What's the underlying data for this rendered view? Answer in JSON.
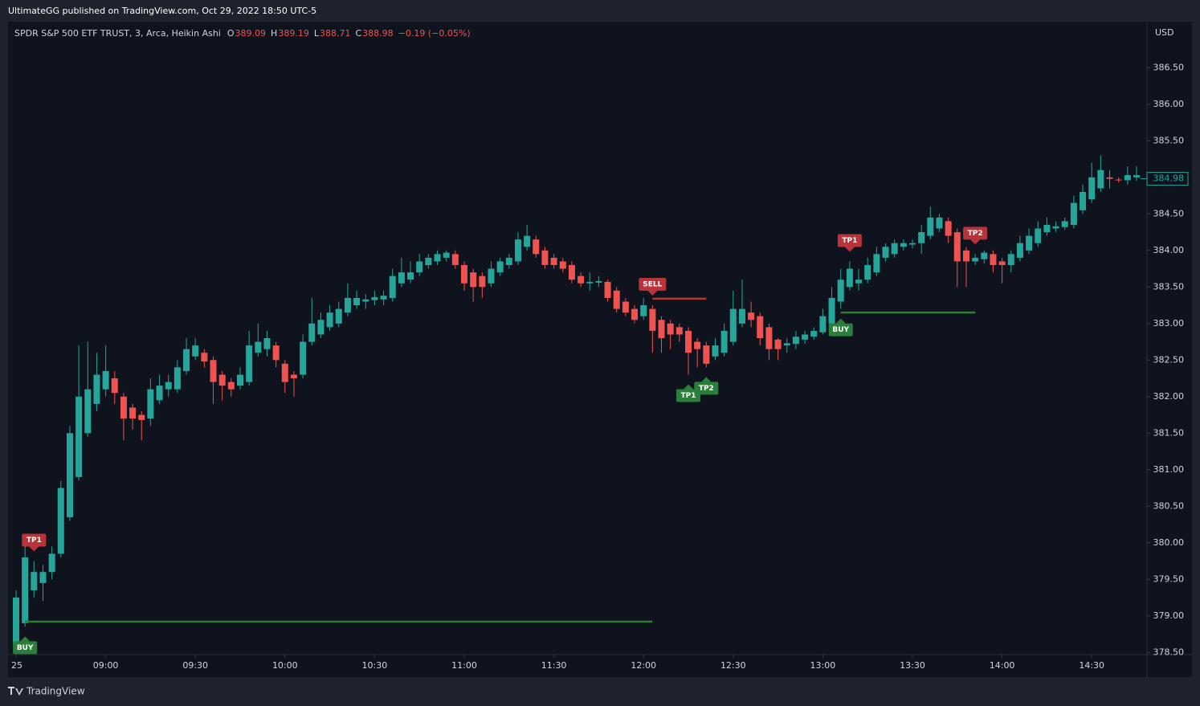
{
  "header": {
    "published": "UltimateGG published on TradingView.com, Oct 29, 2022 18:50 UTC-5",
    "footer": "TradingView"
  },
  "chart_data": {
    "type": "candlestick",
    "symbol": "SPDR S&P 500 ETF TRUST, 3, Arca, Heikin Ashi",
    "ohlc_legend": [
      {
        "key": "O",
        "value": "389.09"
      },
      {
        "key": "H",
        "value": "389.19"
      },
      {
        "key": "L",
        "value": "388.71"
      },
      {
        "key": "C",
        "value": "388.98"
      }
    ],
    "change": "−0.19 (−0.05%)",
    "currency": "USD",
    "up_color": "#26a69a",
    "down_color": "#ef5350",
    "categories": [
      "25",
      null,
      null,
      null,
      null,
      null,
      null,
      null,
      null,
      null,
      "09:00",
      null,
      null,
      null,
      null,
      null,
      null,
      null,
      null,
      null,
      "09:30",
      null,
      null,
      null,
      null,
      null,
      null,
      null,
      null,
      null,
      "10:00",
      null,
      null,
      null,
      null,
      null,
      null,
      null,
      null,
      null,
      "10:30",
      null,
      null,
      null,
      null,
      null,
      null,
      null,
      null,
      null,
      "11:00",
      null,
      null,
      null,
      null,
      null,
      null,
      null,
      null,
      null,
      "11:30",
      null,
      null,
      null,
      null,
      null,
      null,
      null,
      null,
      null,
      "12:00",
      null,
      null,
      null,
      null,
      null,
      null,
      null,
      null,
      null,
      "12:30",
      null,
      null,
      null,
      null,
      null,
      null,
      null,
      null,
      null,
      "13:00",
      null,
      null,
      null,
      null,
      null,
      null,
      null,
      null,
      null,
      "13:30",
      null,
      null,
      null,
      null,
      null,
      null,
      null,
      null,
      null,
      "14:00",
      null,
      null,
      null,
      null,
      null,
      null,
      null,
      null,
      null,
      "14:30",
      null,
      null,
      null,
      null,
      null
    ],
    "open": [
      378.6,
      378.9,
      379.35,
      379.45,
      379.6,
      379.85,
      380.35,
      380.9,
      381.5,
      381.9,
      382.1,
      382.25,
      382.0,
      381.85,
      381.75,
      381.7,
      381.95,
      382.1,
      382.1,
      382.35,
      382.55,
      382.6,
      382.5,
      382.3,
      382.2,
      382.15,
      382.2,
      382.6,
      382.65,
      382.7,
      382.45,
      382.3,
      382.3,
      382.75,
      382.85,
      382.95,
      383.0,
      383.15,
      383.25,
      383.3,
      383.32,
      383.33,
      383.35,
      383.55,
      383.6,
      383.7,
      383.8,
      383.85,
      383.9,
      383.95,
      383.8,
      383.7,
      383.65,
      383.55,
      383.7,
      383.8,
      383.85,
      384.05,
      384.15,
      384.0,
      383.9,
      383.85,
      383.8,
      383.65,
      383.55,
      383.56,
      383.57,
      383.45,
      383.3,
      383.2,
      383.1,
      383.2,
      383.05,
      383.0,
      382.95,
      382.9,
      382.75,
      382.7,
      382.55,
      382.6,
      382.75,
      383.0,
      383.15,
      383.1,
      382.95,
      382.78,
      382.7,
      382.72,
      382.78,
      382.82,
      382.88,
      383.0,
      383.3,
      383.5,
      383.55,
      383.6,
      383.7,
      383.9,
      383.95,
      384.05,
      384.08,
      384.1,
      384.2,
      384.3,
      384.4,
      384.25,
      384.0,
      383.85,
      383.88,
      383.95,
      383.85,
      383.8,
      383.9,
      384.0,
      384.1,
      384.25,
      384.3,
      384.32,
      384.35,
      384.55,
      384.7,
      384.85,
      385.0,
      384.97,
      384.96,
      385.0
    ],
    "high": [
      379.35,
      379.95,
      379.75,
      379.7,
      379.95,
      380.85,
      381.6,
      382.7,
      382.75,
      382.6,
      382.7,
      382.35,
      382.05,
      381.9,
      381.8,
      382.25,
      382.3,
      382.3,
      382.5,
      382.8,
      382.8,
      382.65,
      382.55,
      382.35,
      382.25,
      382.4,
      382.9,
      383.0,
      382.9,
      382.75,
      382.5,
      382.35,
      382.85,
      383.35,
      383.15,
      383.25,
      383.3,
      383.55,
      383.45,
      383.4,
      383.45,
      383.45,
      383.75,
      383.9,
      383.85,
      383.95,
      383.95,
      384.0,
      384.0,
      384.0,
      383.85,
      383.75,
      383.7,
      383.85,
      383.9,
      383.95,
      384.25,
      384.35,
      384.2,
      384.05,
      383.95,
      383.9,
      383.85,
      383.7,
      383.7,
      383.65,
      383.6,
      383.5,
      383.35,
      383.25,
      383.35,
      383.25,
      383.1,
      383.05,
      383.0,
      382.95,
      382.8,
      382.75,
      382.8,
      383.0,
      383.45,
      383.6,
      383.3,
      383.15,
      383.0,
      382.8,
      382.8,
      382.9,
      382.9,
      382.95,
      383.2,
      383.5,
      383.75,
      383.85,
      383.75,
      383.9,
      384.05,
      384.1,
      384.15,
      384.15,
      384.15,
      384.35,
      384.6,
      384.5,
      384.45,
      384.3,
      384.05,
      383.95,
      384.0,
      384.0,
      383.9,
      384.0,
      384.2,
      384.3,
      384.4,
      384.45,
      384.4,
      384.45,
      384.75,
      384.9,
      385.2,
      385.3,
      385.1,
      385.0,
      385.15,
      385.15
    ],
    "low": [
      378.5,
      378.85,
      379.25,
      379.2,
      379.5,
      379.8,
      380.3,
      380.85,
      381.45,
      381.8,
      382.0,
      381.9,
      381.4,
      381.55,
      381.4,
      381.6,
      381.9,
      382.0,
      382.05,
      382.3,
      382.5,
      382.4,
      381.9,
      381.95,
      382.0,
      382.1,
      382.15,
      382.55,
      382.55,
      382.4,
      382.05,
      382.0,
      382.25,
      382.7,
      382.8,
      382.9,
      382.95,
      383.1,
      383.2,
      383.2,
      383.25,
      383.25,
      383.3,
      383.5,
      383.55,
      383.65,
      383.75,
      383.8,
      383.85,
      383.75,
      383.45,
      383.3,
      383.35,
      383.5,
      383.65,
      383.75,
      383.8,
      384.0,
      383.9,
      383.75,
      383.75,
      383.7,
      383.55,
      383.5,
      383.45,
      383.5,
      383.3,
      383.15,
      383.1,
      383.0,
      383.05,
      382.6,
      382.6,
      382.65,
      382.75,
      382.3,
      382.4,
      382.4,
      382.5,
      382.55,
      382.7,
      382.95,
      382.95,
      382.7,
      382.5,
      382.5,
      382.6,
      382.65,
      382.72,
      382.78,
      382.85,
      382.95,
      383.2,
      383.45,
      383.45,
      383.55,
      383.65,
      383.85,
      383.9,
      384.0,
      384.03,
      383.95,
      384.15,
      384.25,
      384.1,
      383.5,
      383.5,
      383.8,
      383.82,
      383.7,
      383.55,
      383.7,
      383.85,
      383.95,
      384.05,
      384.2,
      384.25,
      384.28,
      384.3,
      384.5,
      384.65,
      384.8,
      384.85,
      384.93,
      384.9,
      384.95
    ],
    "close": [
      379.25,
      379.8,
      379.6,
      379.6,
      379.85,
      380.75,
      381.5,
      382.0,
      382.1,
      382.3,
      382.35,
      382.05,
      381.7,
      381.7,
      381.68,
      382.1,
      382.15,
      382.2,
      382.4,
      382.65,
      382.7,
      382.48,
      382.2,
      382.15,
      382.1,
      382.3,
      382.7,
      382.75,
      382.8,
      382.5,
      382.2,
      382.25,
      382.75,
      383.0,
      383.05,
      383.15,
      383.2,
      383.35,
      383.35,
      383.33,
      383.36,
      383.38,
      383.65,
      383.7,
      383.7,
      383.85,
      383.9,
      383.95,
      383.97,
      383.8,
      383.55,
      383.5,
      383.5,
      383.75,
      383.85,
      383.9,
      384.15,
      384.2,
      383.95,
      383.8,
      383.8,
      383.75,
      383.6,
      383.55,
      383.57,
      383.58,
      383.35,
      383.2,
      383.15,
      383.05,
      383.25,
      382.9,
      382.8,
      382.85,
      382.85,
      382.6,
      382.65,
      382.45,
      382.7,
      382.9,
      383.2,
      383.2,
      383.05,
      382.8,
      382.65,
      382.65,
      382.73,
      382.82,
      382.85,
      382.9,
      383.1,
      383.35,
      383.6,
      383.75,
      383.6,
      383.8,
      383.95,
      384.05,
      384.1,
      384.1,
      384.1,
      384.25,
      384.45,
      384.45,
      384.2,
      383.85,
      383.85,
      383.9,
      383.97,
      383.8,
      383.8,
      383.95,
      384.1,
      384.2,
      384.3,
      384.35,
      384.33,
      384.4,
      384.65,
      384.8,
      385.0,
      385.1,
      384.98,
      384.96,
      385.03,
      385.03
    ],
    "last_price": 384.98,
    "ylim": [
      378.47,
      387.13
    ],
    "yticks": [
      {
        "value": 378.5,
        "label": "378.50"
      },
      {
        "value": 379,
        "label": "379.00"
      },
      {
        "value": 379.5,
        "label": "379.50"
      },
      {
        "value": 380,
        "label": "380.00"
      },
      {
        "value": 380.5,
        "label": "380.50"
      },
      {
        "value": 381,
        "label": "381.00"
      },
      {
        "value": 381.5,
        "label": "381.50"
      },
      {
        "value": 382,
        "label": "382.00"
      },
      {
        "value": 382.5,
        "label": "382.50"
      },
      {
        "value": 383,
        "label": "383.00"
      },
      {
        "value": 383.5,
        "label": "383.50"
      },
      {
        "value": 384,
        "label": "384.00"
      },
      {
        "value": 384.5,
        "label": "384.50"
      },
      {
        "value": 385,
        "label": "385.00"
      },
      {
        "value": 385.5,
        "label": "385.50"
      },
      {
        "value": 386,
        "label": "386.00"
      },
      {
        "value": 386.5,
        "label": "386.50"
      }
    ],
    "signals": [
      {
        "label": "BUY",
        "index": 1,
        "side": "below",
        "color": "#2a7f3a"
      },
      {
        "label": "TP1",
        "index": 2,
        "side": "above",
        "color": "#b8333a"
      },
      {
        "label": "SELL",
        "index": 71,
        "side": "above",
        "color": "#b8333a"
      },
      {
        "label": "TP1",
        "index": 75,
        "side": "below",
        "color": "#2a7f3a"
      },
      {
        "label": "TP2",
        "index": 77,
        "side": "below",
        "color": "#2a7f3a"
      },
      {
        "label": "BUY",
        "index": 92,
        "side": "below",
        "color": "#2a7f3a"
      },
      {
        "label": "TP1",
        "index": 93,
        "side": "above",
        "color": "#b8333a"
      },
      {
        "label": "TP2",
        "index": 107,
        "side": "above",
        "color": "#b8333a"
      }
    ],
    "levels": [
      {
        "price": 378.92,
        "from": 1,
        "to": 71,
        "color": "#2e7d32"
      },
      {
        "price": 383.34,
        "from": 71,
        "to": 77,
        "color": "#b23838"
      },
      {
        "price": 383.15,
        "from": 92,
        "to": 107,
        "color": "#2e7d32"
      }
    ]
  }
}
